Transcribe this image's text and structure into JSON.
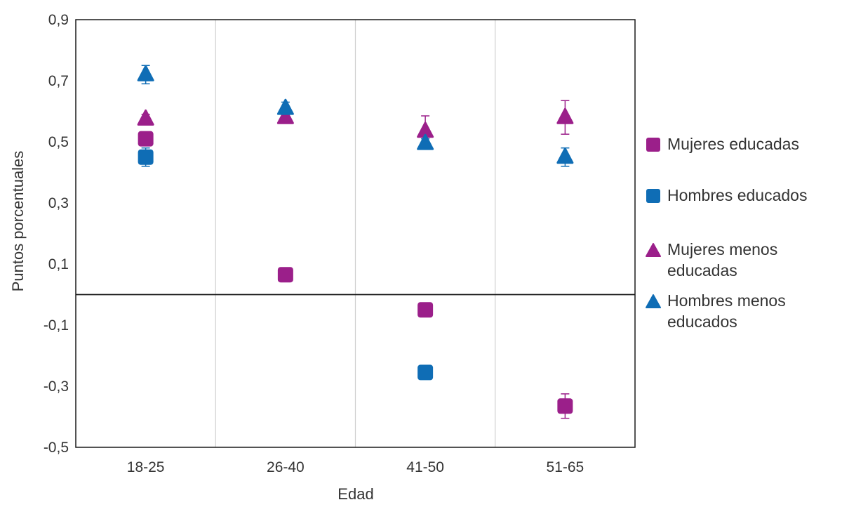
{
  "chart_data": {
    "type": "scatter",
    "title": "",
    "xlabel": "Edad",
    "ylabel": "Puntos porcentuales",
    "categories": [
      "18-25",
      "26-40",
      "41-50",
      "51-65"
    ],
    "ylim": [
      -0.5,
      0.9
    ],
    "yticks": [
      0.9,
      0.7,
      0.5,
      0.3,
      0.1,
      -0.1,
      -0.3,
      -0.5
    ],
    "ytick_labels": [
      "0,9",
      "0,7",
      "0,5",
      "0,3",
      "0,1",
      "-0,1",
      "-0,3",
      "-0,5"
    ],
    "grid": "vertical",
    "legend_position": "right",
    "series": [
      {
        "name": "Mujeres educadas",
        "marker": "square",
        "color": "#9B1F8A",
        "values": [
          0.51,
          0.065,
          -0.05,
          -0.365
        ],
        "err": [
          0.02,
          0.01,
          0.015,
          0.04
        ]
      },
      {
        "name": "Hombres educados",
        "marker": "square",
        "color": "#0F6DB5",
        "values": [
          0.45,
          null,
          -0.255,
          null
        ],
        "err": [
          0.03,
          0,
          0.015,
          0
        ]
      },
      {
        "name": "Mujeres menos educadas",
        "marker": "triangle",
        "color": "#9B1F8A",
        "values": [
          0.575,
          0.58,
          0.535,
          0.58
        ],
        "err": [
          0.015,
          0.01,
          0.05,
          0.055
        ]
      },
      {
        "name": "Hombres menos educados",
        "marker": "triangle",
        "color": "#0F6DB5",
        "values": [
          0.72,
          0.61,
          0.495,
          0.45
        ],
        "err": [
          0.03,
          0.02,
          0.015,
          0.03
        ]
      }
    ]
  },
  "legend": {
    "items": [
      {
        "lines": [
          "Mujeres educadas"
        ]
      },
      {
        "lines": [
          "Hombres educados"
        ]
      },
      {
        "lines": [
          "Mujeres menos",
          "educadas"
        ]
      },
      {
        "lines": [
          "Hombres menos",
          "educados"
        ]
      }
    ]
  }
}
